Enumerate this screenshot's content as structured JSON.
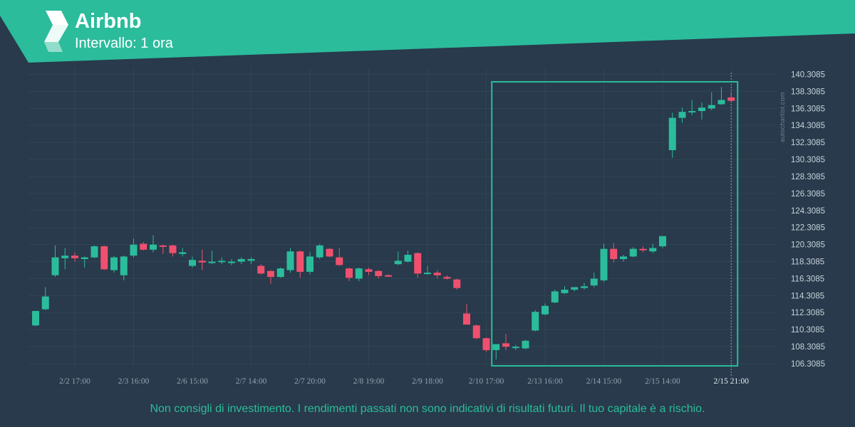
{
  "header": {
    "title": "Airbnb",
    "subtitle": "Intervallo: 1 ora"
  },
  "watermark": "autochartist.com",
  "disclaimer": "Non consigli di investimento. I rendimenti passati non sono indicativi di risultati futuri. Il tuo capitale è a rischio.",
  "colors": {
    "background": "#283a4b",
    "banner": "#2bbc9c",
    "bullish": "#2bbc9c",
    "bearish": "#f0506e",
    "highlight_box": "#2bbc9c"
  },
  "chart_data": {
    "type": "candlestick",
    "title": "Airbnb",
    "ylim": [
      105.3,
      141.0
    ],
    "y_ticks": [
      "140.3085",
      "138.3085",
      "136.3085",
      "134.3085",
      "132.3085",
      "130.3085",
      "128.3085",
      "126.3085",
      "124.3085",
      "122.3085",
      "120.3085",
      "118.3085",
      "116.3085",
      "114.3085",
      "112.3085",
      "110.3085",
      "108.3085",
      "106.3085"
    ],
    "x_ticks": [
      {
        "index": 4,
        "label": "2/2 17:00"
      },
      {
        "index": 10,
        "label": "2/3 16:00"
      },
      {
        "index": 16,
        "label": "2/6 15:00"
      },
      {
        "index": 22,
        "label": "2/7 14:00"
      },
      {
        "index": 28,
        "label": "2/7 20:00"
      },
      {
        "index": 34,
        "label": "2/8 19:00"
      },
      {
        "index": 40,
        "label": "2/9 18:00"
      },
      {
        "index": 46,
        "label": "2/10 17:00"
      },
      {
        "index": 52,
        "label": "2/13 16:00"
      },
      {
        "index": 58,
        "label": "2/14 15:00"
      },
      {
        "index": 64,
        "label": "2/15 14:00"
      },
      {
        "index": 71,
        "label": "2/15 21:00",
        "highlight": true
      }
    ],
    "highlight_range": {
      "start_index": 47,
      "end_index": 71,
      "low": 106.8,
      "high": 139.1
    },
    "candles": [
      {
        "o": 110.8,
        "h": 112.4,
        "l": 110.7,
        "c": 112.5
      },
      {
        "o": 112.7,
        "h": 115.3,
        "l": 112.6,
        "c": 114.2
      },
      {
        "o": 116.7,
        "h": 120.2,
        "l": 116.5,
        "c": 118.8
      },
      {
        "o": 118.7,
        "h": 119.9,
        "l": 117.4,
        "c": 119.0
      },
      {
        "o": 119.0,
        "h": 119.4,
        "l": 118.3,
        "c": 118.7
      },
      {
        "o": 118.6,
        "h": 118.9,
        "l": 117.6,
        "c": 118.8
      },
      {
        "o": 118.8,
        "h": 120.2,
        "l": 118.7,
        "c": 120.1
      },
      {
        "o": 120.1,
        "h": 120.2,
        "l": 117.3,
        "c": 117.4
      },
      {
        "o": 117.3,
        "h": 119.0,
        "l": 117.0,
        "c": 118.8
      },
      {
        "o": 116.7,
        "h": 119.0,
        "l": 116.1,
        "c": 118.9
      },
      {
        "o": 119.0,
        "h": 121.0,
        "l": 118.8,
        "c": 120.3
      },
      {
        "o": 120.4,
        "h": 120.6,
        "l": 119.6,
        "c": 119.7
      },
      {
        "o": 119.7,
        "h": 121.4,
        "l": 119.4,
        "c": 120.3
      },
      {
        "o": 120.2,
        "h": 120.3,
        "l": 119.2,
        "c": 120.1
      },
      {
        "o": 120.2,
        "h": 120.3,
        "l": 118.9,
        "c": 119.3
      },
      {
        "o": 119.2,
        "h": 119.9,
        "l": 118.9,
        "c": 119.4
      },
      {
        "o": 117.8,
        "h": 118.9,
        "l": 117.6,
        "c": 118.5
      },
      {
        "o": 118.4,
        "h": 119.7,
        "l": 117.3,
        "c": 118.2
      },
      {
        "o": 118.2,
        "h": 119.6,
        "l": 118.0,
        "c": 118.3
      },
      {
        "o": 118.3,
        "h": 118.8,
        "l": 118.0,
        "c": 118.4
      },
      {
        "o": 118.3,
        "h": 118.6,
        "l": 117.9,
        "c": 118.3
      },
      {
        "o": 118.3,
        "h": 118.8,
        "l": 118.0,
        "c": 118.6
      },
      {
        "o": 118.4,
        "h": 118.8,
        "l": 118.0,
        "c": 118.6
      },
      {
        "o": 117.8,
        "h": 118.0,
        "l": 116.8,
        "c": 116.9
      },
      {
        "o": 117.2,
        "h": 117.3,
        "l": 115.7,
        "c": 116.5
      },
      {
        "o": 116.5,
        "h": 117.6,
        "l": 116.4,
        "c": 117.5
      },
      {
        "o": 117.3,
        "h": 119.9,
        "l": 117.0,
        "c": 119.5
      },
      {
        "o": 119.5,
        "h": 119.6,
        "l": 116.4,
        "c": 117.1
      },
      {
        "o": 117.1,
        "h": 119.4,
        "l": 116.8,
        "c": 118.9
      },
      {
        "o": 118.8,
        "h": 120.4,
        "l": 118.6,
        "c": 120.2
      },
      {
        "o": 119.8,
        "h": 119.9,
        "l": 118.8,
        "c": 118.9
      },
      {
        "o": 118.8,
        "h": 119.9,
        "l": 117.8,
        "c": 117.9
      },
      {
        "o": 117.5,
        "h": 117.6,
        "l": 116.0,
        "c": 116.4
      },
      {
        "o": 116.3,
        "h": 117.6,
        "l": 116.0,
        "c": 117.5
      },
      {
        "o": 117.4,
        "h": 117.6,
        "l": 116.7,
        "c": 117.1
      },
      {
        "o": 117.2,
        "h": 117.3,
        "l": 116.3,
        "c": 116.6
      },
      {
        "o": 116.7,
        "h": 116.8,
        "l": 116.5,
        "c": 116.6
      },
      {
        "o": 118.0,
        "h": 119.5,
        "l": 117.9,
        "c": 118.4
      },
      {
        "o": 118.3,
        "h": 119.6,
        "l": 118.2,
        "c": 119.1
      },
      {
        "o": 119.3,
        "h": 119.4,
        "l": 116.4,
        "c": 116.9
      },
      {
        "o": 116.9,
        "h": 117.8,
        "l": 116.8,
        "c": 117.0
      },
      {
        "o": 117.0,
        "h": 117.3,
        "l": 116.3,
        "c": 116.7
      },
      {
        "o": 116.5,
        "h": 116.7,
        "l": 116.2,
        "c": 116.3
      },
      {
        "o": 116.2,
        "h": 116.3,
        "l": 115.0,
        "c": 115.2
      },
      {
        "o": 112.2,
        "h": 113.3,
        "l": 110.9,
        "c": 110.9
      },
      {
        "o": 110.8,
        "h": 110.9,
        "l": 109.2,
        "c": 109.3
      },
      {
        "o": 109.3,
        "h": 109.4,
        "l": 107.7,
        "c": 107.9
      },
      {
        "o": 107.9,
        "h": 108.6,
        "l": 106.8,
        "c": 108.6
      },
      {
        "o": 108.7,
        "h": 109.8,
        "l": 107.9,
        "c": 108.3
      },
      {
        "o": 108.2,
        "h": 108.5,
        "l": 107.9,
        "c": 108.3
      },
      {
        "o": 108.1,
        "h": 109.1,
        "l": 108.0,
        "c": 109.0
      },
      {
        "o": 110.2,
        "h": 112.6,
        "l": 110.1,
        "c": 112.4
      },
      {
        "o": 112.1,
        "h": 113.4,
        "l": 112.0,
        "c": 113.1
      },
      {
        "o": 113.5,
        "h": 115.0,
        "l": 113.4,
        "c": 114.8
      },
      {
        "o": 114.6,
        "h": 115.4,
        "l": 114.5,
        "c": 115.0
      },
      {
        "o": 115.0,
        "h": 115.3,
        "l": 114.8,
        "c": 115.3
      },
      {
        "o": 115.2,
        "h": 115.8,
        "l": 115.0,
        "c": 115.4
      },
      {
        "o": 115.5,
        "h": 117.0,
        "l": 115.3,
        "c": 116.3
      },
      {
        "o": 116.1,
        "h": 120.4,
        "l": 115.9,
        "c": 119.8
      },
      {
        "o": 119.8,
        "h": 120.5,
        "l": 118.2,
        "c": 118.6
      },
      {
        "o": 118.6,
        "h": 119.1,
        "l": 118.3,
        "c": 118.9
      },
      {
        "o": 118.9,
        "h": 120.0,
        "l": 118.8,
        "c": 119.8
      },
      {
        "o": 119.8,
        "h": 120.1,
        "l": 119.4,
        "c": 119.7
      },
      {
        "o": 119.5,
        "h": 120.4,
        "l": 119.3,
        "c": 119.9
      },
      {
        "o": 120.1,
        "h": 121.3,
        "l": 119.9,
        "c": 121.3
      },
      {
        "o": 131.4,
        "h": 135.8,
        "l": 130.5,
        "c": 135.2
      },
      {
        "o": 135.2,
        "h": 136.4,
        "l": 134.6,
        "c": 135.9
      },
      {
        "o": 135.9,
        "h": 137.3,
        "l": 135.5,
        "c": 136.0
      },
      {
        "o": 136.0,
        "h": 137.0,
        "l": 135.0,
        "c": 136.4
      },
      {
        "o": 136.3,
        "h": 138.2,
        "l": 136.1,
        "c": 136.7
      },
      {
        "o": 136.8,
        "h": 138.8,
        "l": 136.7,
        "c": 137.3
      },
      {
        "o": 137.6,
        "h": 138.2,
        "l": 137.0,
        "c": 137.2
      }
    ]
  }
}
